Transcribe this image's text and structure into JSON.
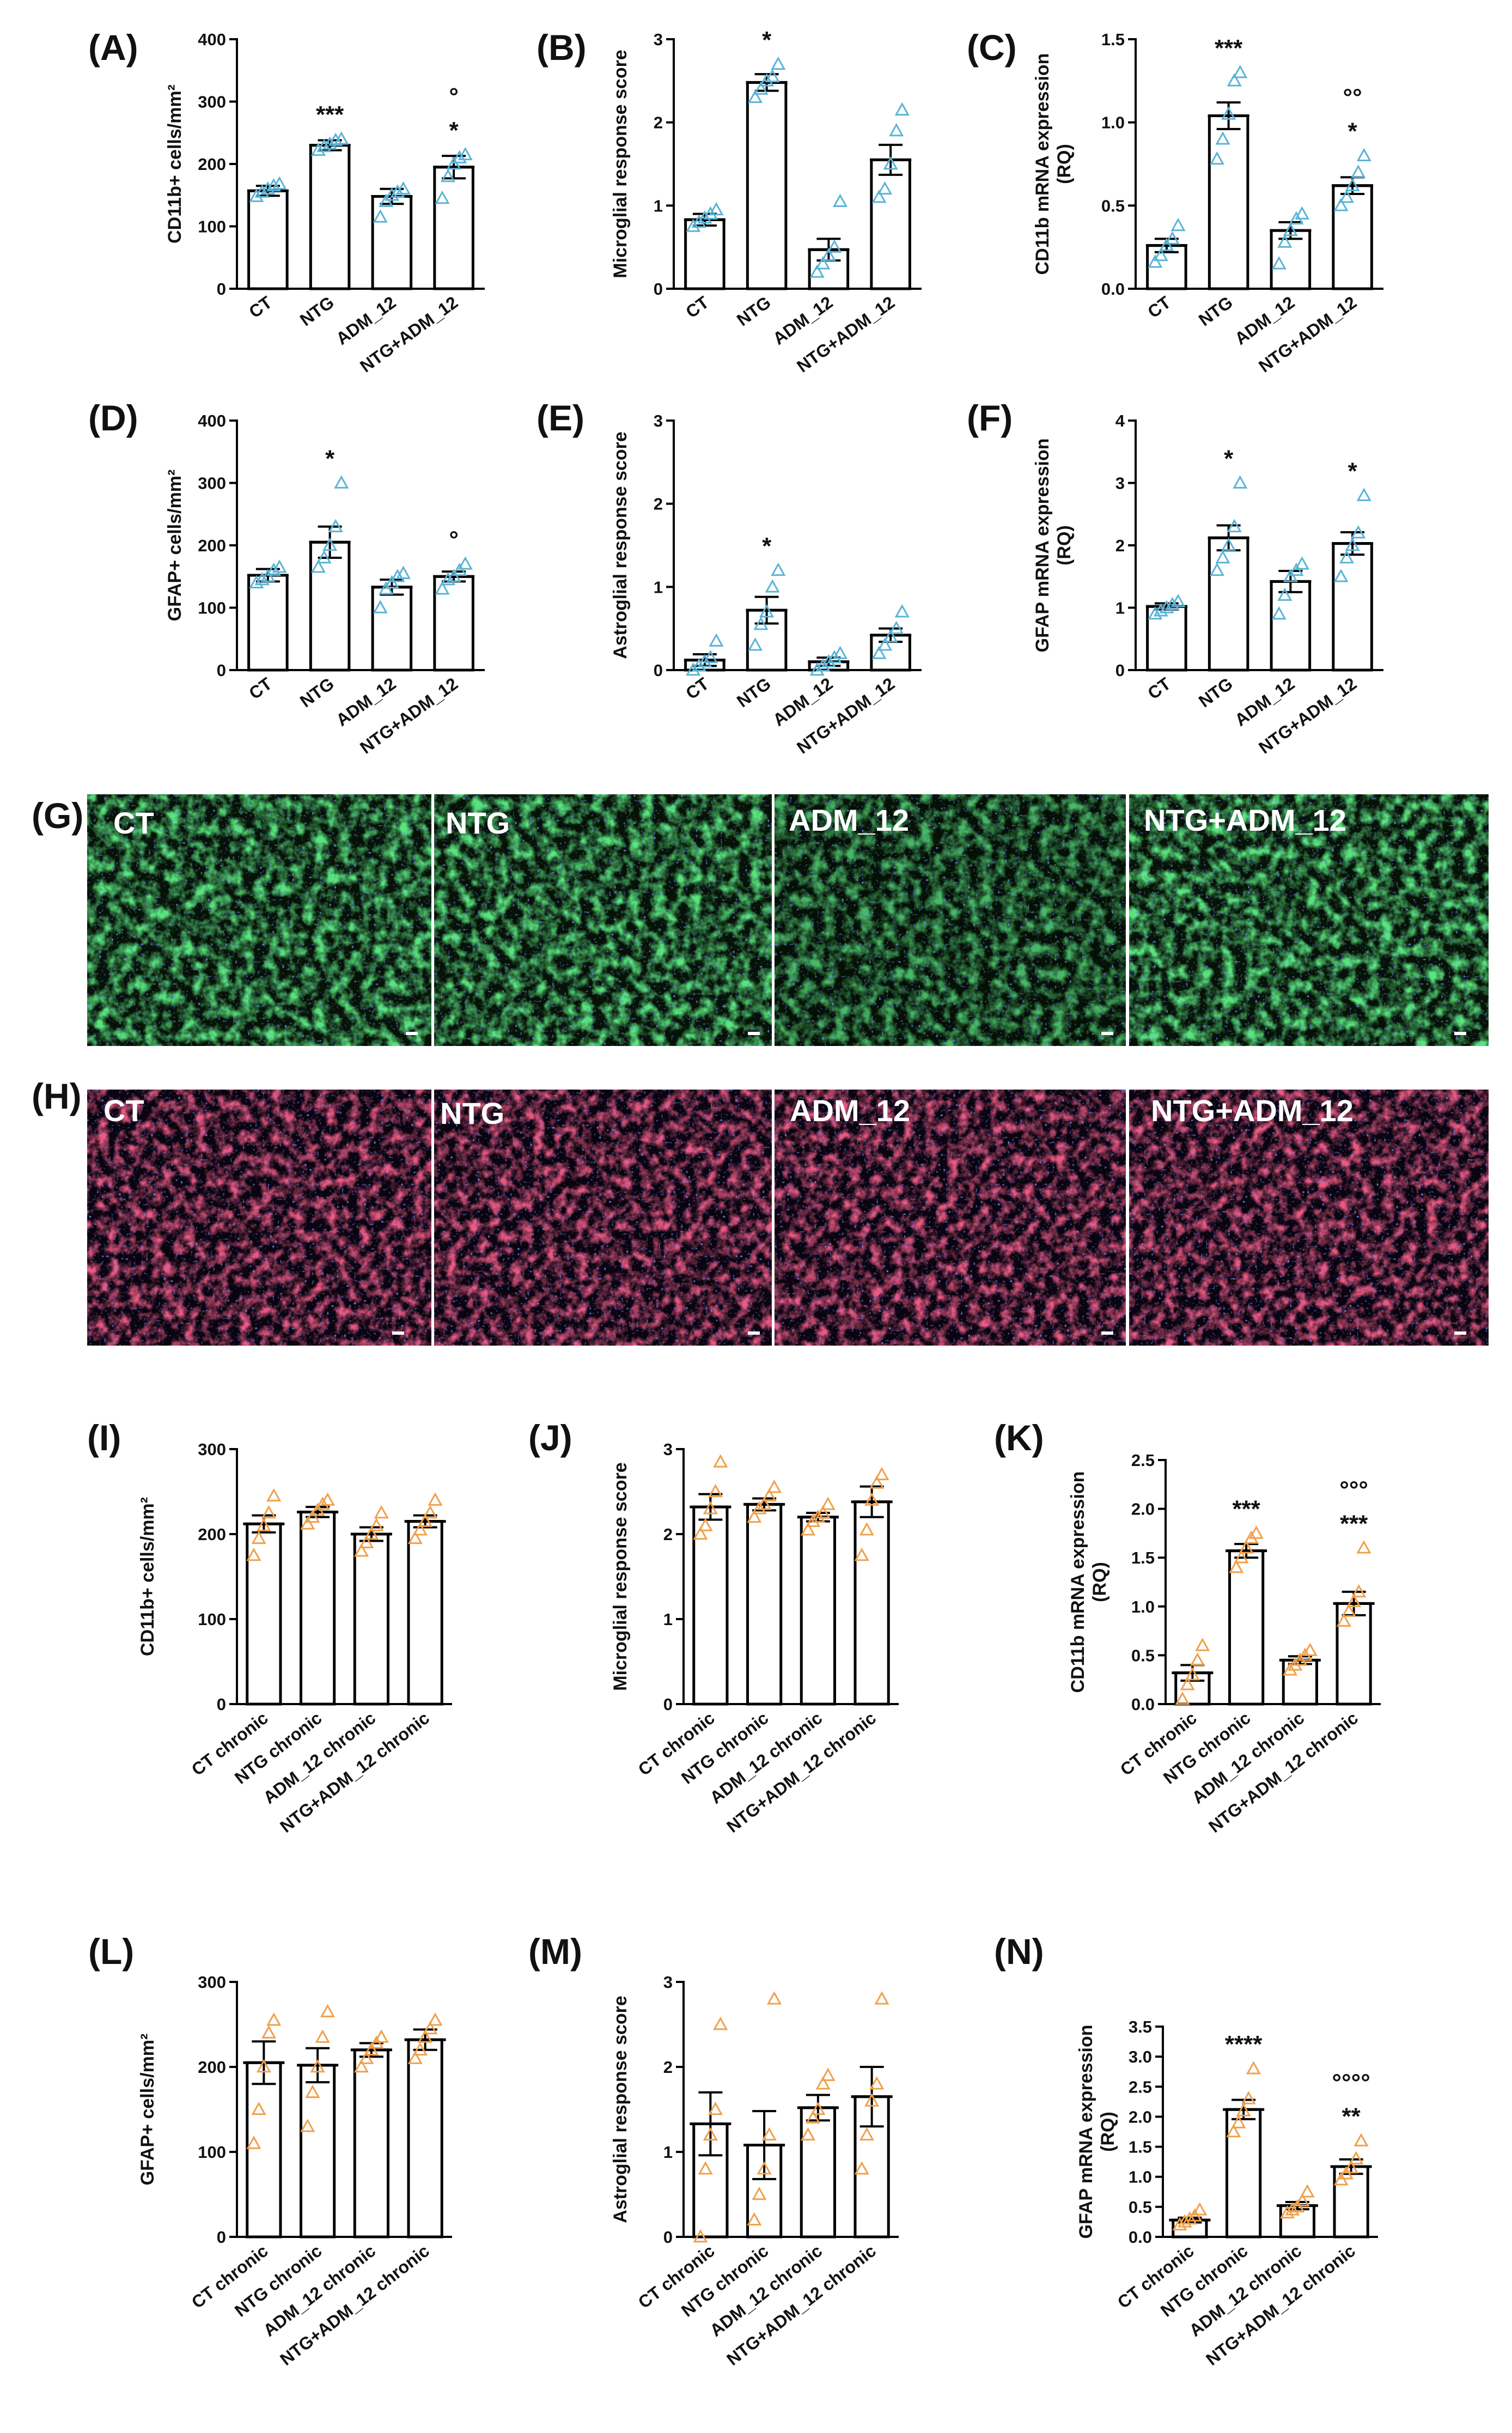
{
  "colors": {
    "acute_markers": "#5ab4d6",
    "chronic_markers": "#f0a04b",
    "bar_fill": "#ffffff",
    "bar_stroke": "#000000",
    "green_stain": "#2fae3a",
    "red_stain": "#d0203a",
    "nuclei_stain": "#2a3cd8",
    "scalebar": "#ffffff"
  },
  "chart_data": [
    {
      "panel": "(A)",
      "type": "bar",
      "marker": "triangle",
      "color": "acute",
      "categories": [
        "CT",
        "NTG",
        "ADM_12",
        "NTG+ADM_12"
      ],
      "ylabel": "CD11b+ cells/mm²",
      "ylim": [
        0,
        400
      ],
      "yticks": [
        0,
        100,
        200,
        300,
        400
      ],
      "yticklabels": [
        "0",
        "100",
        "200",
        "300",
        "400"
      ],
      "values": [
        157,
        230,
        148,
        195
      ],
      "errors": [
        8,
        8,
        12,
        18
      ],
      "points": [
        [
          148,
          155,
          160,
          165,
          168
        ],
        [
          222,
          228,
          232,
          238,
          240
        ],
        [
          115,
          140,
          150,
          155,
          160
        ],
        [
          145,
          180,
          200,
          210,
          215
        ]
      ],
      "sig_lines": [
        [
          "",
          "***",
          "",
          "°"
        ],
        [
          "",
          "",
          "",
          "*"
        ]
      ]
    },
    {
      "panel": "(B)",
      "type": "bar",
      "marker": "triangle",
      "color": "acute",
      "categories": [
        "CT",
        "NTG",
        "ADM_12",
        "NTG+ADM_12"
      ],
      "ylabel": "Microglial response score",
      "ylim": [
        0,
        3
      ],
      "yticks": [
        0,
        1,
        2,
        3
      ],
      "yticklabels": [
        "0",
        "1",
        "2",
        "3"
      ],
      "values": [
        0.83,
        2.48,
        0.47,
        1.55
      ],
      "errors": [
        0.07,
        0.1,
        0.13,
        0.18
      ],
      "points": [
        [
          0.75,
          0.8,
          0.85,
          0.9,
          0.95
        ],
        [
          2.3,
          2.4,
          2.5,
          2.55,
          2.7
        ],
        [
          0.2,
          0.3,
          0.4,
          0.5,
          1.05
        ],
        [
          1.1,
          1.2,
          1.5,
          1.9,
          2.15
        ]
      ],
      "sig_lines": [
        [
          "",
          "*",
          "",
          ""
        ],
        [
          "",
          "",
          "",
          ""
        ]
      ]
    },
    {
      "panel": "(C)",
      "type": "bar",
      "marker": "triangle",
      "color": "acute",
      "categories": [
        "CT",
        "NTG",
        "ADM_12",
        "NTG+ADM_12"
      ],
      "ylabel": "CD11b mRNA expression (RQ)",
      "ylim": [
        0,
        1.5
      ],
      "yticks": [
        0,
        0.5,
        1.0,
        1.5
      ],
      "yticklabels": [
        "0.0",
        "0.5",
        "1.0",
        "1.5"
      ],
      "values": [
        0.26,
        1.04,
        0.35,
        0.62
      ],
      "errors": [
        0.04,
        0.08,
        0.05,
        0.05
      ],
      "points": [
        [
          0.16,
          0.2,
          0.26,
          0.3,
          0.38
        ],
        [
          0.78,
          0.9,
          1.05,
          1.25,
          1.3
        ],
        [
          0.15,
          0.28,
          0.35,
          0.42,
          0.45
        ],
        [
          0.5,
          0.55,
          0.62,
          0.7,
          0.8
        ]
      ],
      "sig_lines": [
        [
          "",
          "***",
          "",
          "°°"
        ],
        [
          "",
          "",
          "",
          "*"
        ]
      ]
    },
    {
      "panel": "(D)",
      "type": "bar",
      "marker": "triangle",
      "color": "acute",
      "categories": [
        "CT",
        "NTG",
        "ADM_12",
        "NTG+ADM_12"
      ],
      "ylabel": "GFAP+ cells/mm²",
      "ylim": [
        0,
        400
      ],
      "yticks": [
        0,
        100,
        200,
        300,
        400
      ],
      "yticklabels": [
        "0",
        "100",
        "200",
        "300",
        "400"
      ],
      "values": [
        152,
        205,
        133,
        150
      ],
      "errors": [
        10,
        25,
        12,
        8
      ],
      "points": [
        [
          140,
          145,
          150,
          160,
          165
        ],
        [
          165,
          180,
          200,
          230,
          300
        ],
        [
          100,
          130,
          140,
          150,
          155
        ],
        [
          130,
          145,
          150,
          160,
          170
        ]
      ],
      "sig_lines": [
        [
          "",
          "*",
          "",
          "°"
        ],
        [
          "",
          "",
          "",
          ""
        ]
      ]
    },
    {
      "panel": "(E)",
      "type": "bar",
      "marker": "triangle",
      "color": "acute",
      "categories": [
        "CT",
        "NTG",
        "ADM_12",
        "NTG+ADM_12"
      ],
      "ylabel": "Astroglial response score",
      "ylim": [
        0,
        3
      ],
      "yticks": [
        0,
        1,
        2,
        3
      ],
      "yticklabels": [
        "0",
        "1",
        "2",
        "3"
      ],
      "values": [
        0.12,
        0.72,
        0.1,
        0.42
      ],
      "errors": [
        0.07,
        0.16,
        0.05,
        0.08
      ],
      "points": [
        [
          0.0,
          0.05,
          0.1,
          0.15,
          0.35
        ],
        [
          0.3,
          0.55,
          0.7,
          1.0,
          1.2
        ],
        [
          0.0,
          0.05,
          0.1,
          0.15,
          0.2
        ],
        [
          0.2,
          0.3,
          0.4,
          0.5,
          0.7
        ]
      ],
      "sig_lines": [
        [
          "",
          "*",
          "",
          ""
        ],
        [
          "",
          "",
          "",
          ""
        ]
      ]
    },
    {
      "panel": "(F)",
      "type": "bar",
      "marker": "triangle",
      "color": "acute",
      "categories": [
        "CT",
        "NTG",
        "ADM_12",
        "NTG+ADM_12"
      ],
      "ylabel": "GFAP mRNA expression (RQ)",
      "ylim": [
        0,
        4
      ],
      "yticks": [
        0,
        1,
        2,
        3,
        4
      ],
      "yticklabels": [
        "0",
        "1",
        "2",
        "3",
        "4"
      ],
      "values": [
        1.02,
        2.12,
        1.42,
        2.03
      ],
      "errors": [
        0.05,
        0.2,
        0.17,
        0.18
      ],
      "points": [
        [
          0.9,
          0.95,
          1.0,
          1.05,
          1.1
        ],
        [
          1.6,
          1.8,
          2.0,
          2.3,
          3.0
        ],
        [
          0.9,
          1.2,
          1.5,
          1.6,
          1.7
        ],
        [
          1.5,
          1.8,
          2.0,
          2.2,
          2.8
        ]
      ],
      "sig_lines": [
        [
          "",
          "*",
          "",
          "*"
        ],
        [
          "",
          "",
          "",
          ""
        ]
      ]
    },
    {
      "panel": "(I)",
      "type": "bar",
      "marker": "triangle",
      "color": "chronic",
      "categories": [
        "CT chronic",
        "NTG chronic",
        "ADM_12 chronic",
        "NTG+ADM_12 chronic"
      ],
      "ylabel": "CD11b+ cells/mm²",
      "ylim": [
        0,
        300
      ],
      "yticks": [
        0,
        100,
        200,
        300
      ],
      "yticklabels": [
        "0",
        "100",
        "200",
        "300"
      ],
      "values": [
        212,
        226,
        200,
        215
      ],
      "errors": [
        10,
        6,
        8,
        7
      ],
      "points": [
        [
          175,
          195,
          210,
          225,
          245
        ],
        [
          212,
          220,
          228,
          235,
          240
        ],
        [
          180,
          190,
          200,
          210,
          225
        ],
        [
          195,
          205,
          215,
          225,
          240
        ]
      ],
      "sig_lines": [
        [
          "",
          "",
          "",
          ""
        ],
        [
          "",
          "",
          "",
          ""
        ]
      ]
    },
    {
      "panel": "(J)",
      "type": "bar",
      "marker": "triangle",
      "color": "chronic",
      "categories": [
        "CT chronic",
        "NTG chronic",
        "ADM_12 chronic",
        "NTG+ADM_12 chronic"
      ],
      "ylabel": "Microglial response score",
      "ylim": [
        0,
        3
      ],
      "yticks": [
        0,
        1,
        2,
        3
      ],
      "yticklabels": [
        "0",
        "1",
        "2",
        "3"
      ],
      "values": [
        2.32,
        2.35,
        2.2,
        2.38
      ],
      "errors": [
        0.15,
        0.07,
        0.05,
        0.18
      ],
      "points": [
        [
          2.0,
          2.1,
          2.3,
          2.5,
          2.85
        ],
        [
          2.2,
          2.3,
          2.35,
          2.45,
          2.55
        ],
        [
          2.05,
          2.15,
          2.2,
          2.25,
          2.35
        ],
        [
          1.75,
          2.05,
          2.4,
          2.6,
          2.7
        ]
      ],
      "sig_lines": [
        [
          "",
          "",
          "",
          ""
        ],
        [
          "",
          "",
          "",
          ""
        ]
      ]
    },
    {
      "panel": "(K)",
      "type": "bar",
      "marker": "triangle",
      "color": "chronic",
      "categories": [
        "CT chronic",
        "NTG chronic",
        "ADM_12 chronic",
        "NTG+ADM_12 chronic"
      ],
      "ylabel": "CD11b mRNA expression (RQ)",
      "ylim": [
        0,
        2.5
      ],
      "yticks": [
        0,
        0.5,
        1.0,
        1.5,
        2.0,
        2.5
      ],
      "yticklabels": [
        "0.0",
        "0.5",
        "1.0",
        "1.5",
        "2.0",
        "2.5"
      ],
      "values": [
        0.32,
        1.57,
        0.45,
        1.03
      ],
      "errors": [
        0.08,
        0.07,
        0.04,
        0.12
      ],
      "points": [
        [
          0.05,
          0.2,
          0.3,
          0.45,
          0.6
        ],
        [
          1.4,
          1.5,
          1.6,
          1.7,
          1.75
        ],
        [
          0.35,
          0.4,
          0.45,
          0.5,
          0.55
        ],
        [
          0.85,
          0.95,
          1.05,
          1.15,
          1.6
        ]
      ],
      "sig_lines": [
        [
          "",
          "***",
          "",
          "°°°"
        ],
        [
          "",
          "",
          "",
          "***"
        ]
      ]
    },
    {
      "panel": "(L)",
      "type": "bar",
      "marker": "triangle",
      "color": "chronic",
      "categories": [
        "CT chronic",
        "NTG chronic",
        "ADM_12 chronic",
        "NTG+ADM_12 chronic"
      ],
      "ylabel": "GFAP+ cells/mm²",
      "ylim": [
        0,
        300
      ],
      "yticks": [
        0,
        100,
        200,
        300
      ],
      "yticklabels": [
        "0",
        "100",
        "200",
        "300"
      ],
      "values": [
        205,
        202,
        220,
        232
      ],
      "errors": [
        25,
        20,
        8,
        12
      ],
      "points": [
        [
          110,
          150,
          200,
          240,
          255
        ],
        [
          130,
          170,
          200,
          235,
          265
        ],
        [
          200,
          210,
          220,
          228,
          235
        ],
        [
          210,
          220,
          235,
          245,
          255
        ]
      ],
      "sig_lines": [
        [
          "",
          "",
          "",
          ""
        ],
        [
          "",
          "",
          "",
          ""
        ]
      ]
    },
    {
      "panel": "(M)",
      "type": "bar",
      "marker": "triangle",
      "color": "chronic",
      "categories": [
        "CT chronic",
        "NTG chronic",
        "ADM_12 chronic",
        "NTG+ADM_12 chronic"
      ],
      "ylabel": "Astroglial response score",
      "ylim": [
        0,
        3
      ],
      "yticks": [
        0,
        1,
        2,
        3
      ],
      "yticklabels": [
        "0",
        "1",
        "2",
        "3"
      ],
      "values": [
        1.33,
        1.08,
        1.52,
        1.65
      ],
      "errors": [
        0.37,
        0.4,
        0.15,
        0.35
      ],
      "points": [
        [
          0.0,
          0.8,
          1.2,
          1.5,
          2.5
        ],
        [
          0.2,
          0.5,
          0.8,
          1.2,
          2.8
        ],
        [
          1.2,
          1.4,
          1.5,
          1.8,
          1.9
        ],
        [
          0.8,
          1.2,
          1.6,
          1.8,
          2.8
        ]
      ],
      "sig_lines": [
        [
          "",
          "",
          "",
          ""
        ],
        [
          "",
          "",
          "",
          ""
        ]
      ]
    },
    {
      "panel": "(N)",
      "type": "bar",
      "marker": "triangle",
      "color": "chronic",
      "categories": [
        "CT chronic",
        "NTG chronic",
        "ADM_12 chronic",
        "NTG+ADM_12 chronic"
      ],
      "ylabel": "GFAP mRNA expression (RQ)",
      "ylim": [
        0,
        3.5
      ],
      "yticks": [
        0,
        0.5,
        1.0,
        1.5,
        2.0,
        2.5,
        3.0,
        3.5
      ],
      "yticklabels": [
        "0.0",
        "0.5",
        "1.0",
        "1.5",
        "2.0",
        "2.5",
        "3.0",
        "3.5"
      ],
      "values": [
        0.28,
        2.12,
        0.52,
        1.17
      ],
      "errors": [
        0.04,
        0.16,
        0.06,
        0.12
      ],
      "points": [
        [
          0.2,
          0.25,
          0.3,
          0.35,
          0.45
        ],
        [
          1.75,
          1.9,
          2.1,
          2.3,
          2.8
        ],
        [
          0.4,
          0.45,
          0.5,
          0.6,
          0.75
        ],
        [
          0.95,
          1.05,
          1.15,
          1.3,
          1.6
        ]
      ],
      "sig_lines": [
        [
          "",
          "****",
          "",
          "°°°°"
        ],
        [
          "",
          "",
          "",
          "**"
        ]
      ]
    }
  ],
  "micrographs": [
    {
      "panel": "(G)",
      "stain": "green",
      "labels": [
        "CT",
        "NTG",
        "ADM_12",
        "NTG+ADM_12"
      ]
    },
    {
      "panel": "(H)",
      "stain": "red",
      "labels": [
        "CT",
        "NTG",
        "ADM_12",
        "NTG+ADM_12"
      ]
    }
  ]
}
